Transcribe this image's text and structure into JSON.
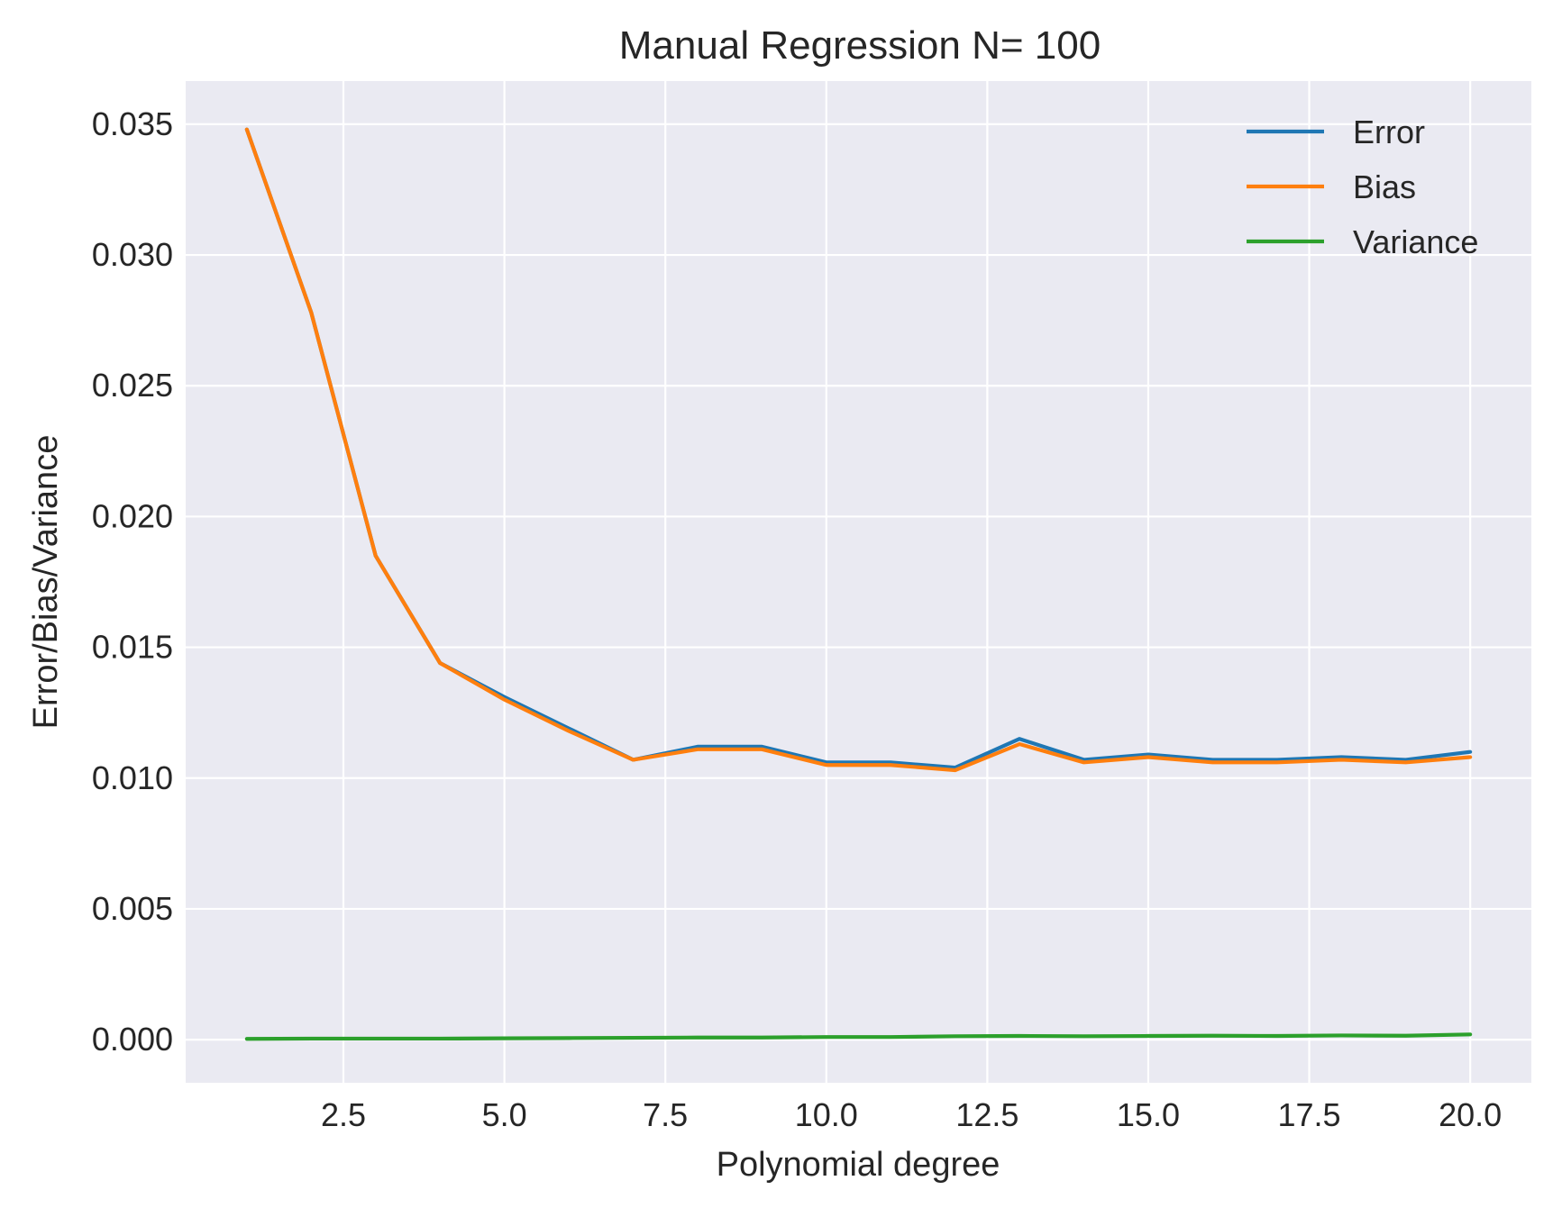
{
  "chart_data": {
    "type": "line",
    "title": "Manual Regression N= 100",
    "xlabel": "Polynomial degree",
    "ylabel": "Error/Bias/Variance",
    "xlim": [
      0.05,
      20.95
    ],
    "ylim": [
      -0.00165,
      0.03665
    ],
    "xticks": [
      2.5,
      5.0,
      7.5,
      10.0,
      12.5,
      15.0,
      17.5,
      20.0
    ],
    "xtick_labels": [
      "2.5",
      "5.0",
      "7.5",
      "10.0",
      "12.5",
      "15.0",
      "17.5",
      "20.0"
    ],
    "yticks": [
      0.0,
      0.005,
      0.01,
      0.015,
      0.02,
      0.025,
      0.03,
      0.035
    ],
    "ytick_labels": [
      "0.000",
      "0.005",
      "0.010",
      "0.015",
      "0.020",
      "0.025",
      "0.030",
      "0.035"
    ],
    "grid": true,
    "legend_position": "top-right",
    "x": [
      1,
      2,
      3,
      4,
      5,
      6,
      7,
      8,
      9,
      10,
      11,
      12,
      13,
      14,
      15,
      16,
      17,
      18,
      19,
      20
    ],
    "series": [
      {
        "name": "Error",
        "color": "#1f77b4",
        "values": [
          0.0348,
          0.0278,
          0.0185,
          0.0144,
          0.0131,
          0.0119,
          0.0107,
          0.0112,
          0.0112,
          0.0106,
          0.0106,
          0.0104,
          0.0115,
          0.0107,
          0.0109,
          0.0107,
          0.0107,
          0.0108,
          0.0107,
          0.011
        ]
      },
      {
        "name": "Bias",
        "color": "#ff7f0e",
        "values": [
          0.0348,
          0.0278,
          0.0185,
          0.0144,
          0.013,
          0.0118,
          0.0107,
          0.0111,
          0.0111,
          0.0105,
          0.0105,
          0.0103,
          0.0113,
          0.0106,
          0.0108,
          0.0106,
          0.0106,
          0.0107,
          0.0106,
          0.0108
        ]
      },
      {
        "name": "Variance",
        "color": "#2ca02c",
        "values": [
          3e-05,
          4e-05,
          4e-05,
          4e-05,
          5e-05,
          6e-05,
          7e-05,
          8e-05,
          8e-05,
          0.0001,
          0.0001,
          0.00013,
          0.00014,
          0.00013,
          0.00014,
          0.00015,
          0.00014,
          0.00016,
          0.00015,
          0.0002
        ]
      }
    ],
    "background_color": "#eaeaf2",
    "grid_color": "#ffffff"
  }
}
